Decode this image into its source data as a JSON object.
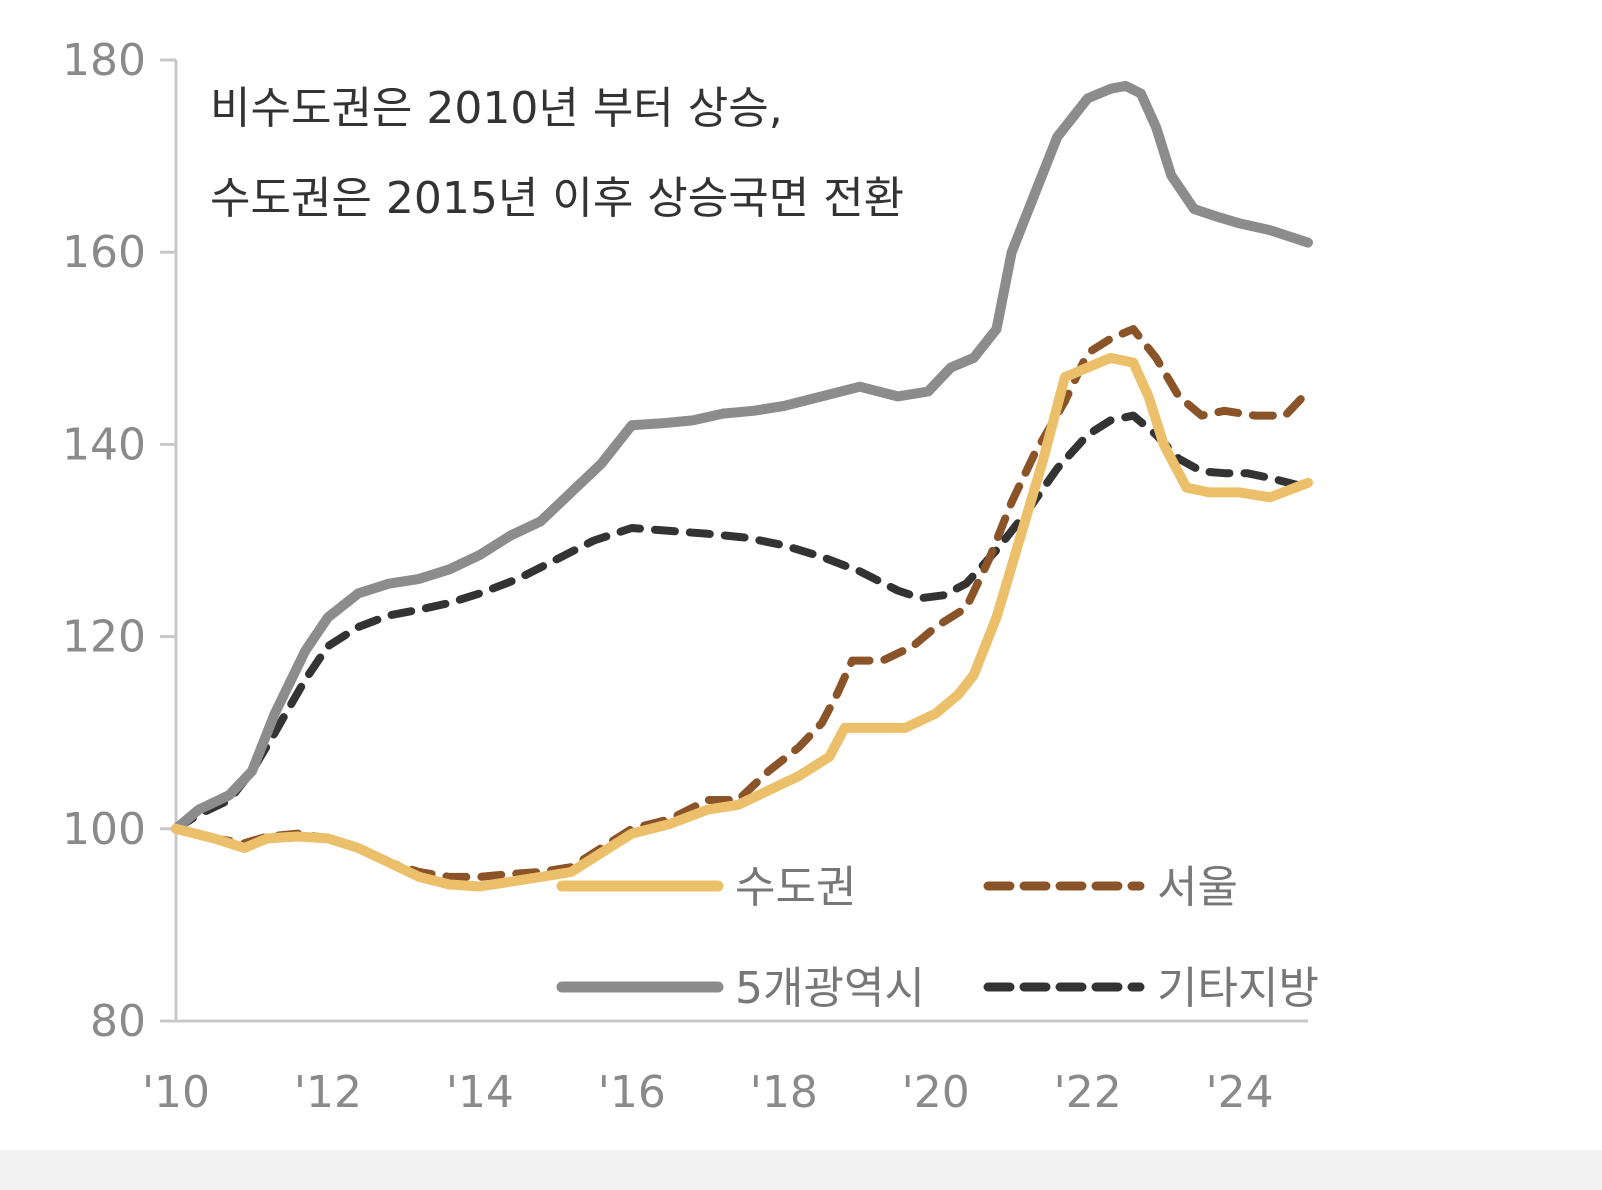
{
  "chart_data": {
    "type": "line",
    "annotation": [
      "비수도권은 2010년 부터 상승,",
      "수도권은 2015년 이후 상승국면 전환"
    ],
    "y_ticks": [
      "180",
      "160",
      "140",
      "120",
      "100",
      "80"
    ],
    "x_ticks": [
      "'10",
      "'12",
      "'14",
      "'16",
      "'18",
      "'20",
      "'22",
      "'24"
    ],
    "ylim": [
      80,
      180
    ],
    "xlim": [
      2010,
      2024.9
    ],
    "grid": false,
    "legend_position": "bottom-right",
    "series": [
      {
        "name": "수도권",
        "color": "#ecc06a",
        "dash": "solid",
        "points": [
          [
            2010.0,
            100
          ],
          [
            2010.5,
            99
          ],
          [
            2010.9,
            98
          ],
          [
            2011.2,
            99
          ],
          [
            2011.6,
            99.2
          ],
          [
            2012.0,
            99
          ],
          [
            2012.4,
            98
          ],
          [
            2012.8,
            96.5
          ],
          [
            2013.2,
            95
          ],
          [
            2013.6,
            94.2
          ],
          [
            2014.0,
            94
          ],
          [
            2014.4,
            94.5
          ],
          [
            2014.8,
            95
          ],
          [
            2015.2,
            95.5
          ],
          [
            2015.6,
            97.5
          ],
          [
            2016.0,
            99.5
          ],
          [
            2016.5,
            100.5
          ],
          [
            2017.0,
            102
          ],
          [
            2017.4,
            102.5
          ],
          [
            2017.8,
            104
          ],
          [
            2018.2,
            105.5
          ],
          [
            2018.6,
            107.5
          ],
          [
            2018.8,
            110.5
          ],
          [
            2019.2,
            110.5
          ],
          [
            2019.6,
            110.5
          ],
          [
            2020.0,
            112
          ],
          [
            2020.3,
            114
          ],
          [
            2020.5,
            116
          ],
          [
            2020.8,
            122
          ],
          [
            2021.1,
            130
          ],
          [
            2021.4,
            138
          ],
          [
            2021.7,
            147
          ],
          [
            2022.0,
            148
          ],
          [
            2022.3,
            149
          ],
          [
            2022.6,
            148.5
          ],
          [
            2022.8,
            145
          ],
          [
            2023.0,
            140
          ],
          [
            2023.3,
            135.5
          ],
          [
            2023.6,
            135
          ],
          [
            2024.0,
            135
          ],
          [
            2024.4,
            134.5
          ],
          [
            2024.9,
            136
          ]
        ]
      },
      {
        "name": "서울",
        "color": "#8a5428",
        "dash": "dashed",
        "points": [
          [
            2010.0,
            100
          ],
          [
            2010.5,
            99
          ],
          [
            2010.9,
            98.5
          ],
          [
            2011.2,
            99.2
          ],
          [
            2011.6,
            99.5
          ],
          [
            2012.0,
            99
          ],
          [
            2012.4,
            98
          ],
          [
            2012.8,
            96.5
          ],
          [
            2013.2,
            95.5
          ],
          [
            2013.6,
            95
          ],
          [
            2014.0,
            95
          ],
          [
            2014.4,
            95.3
          ],
          [
            2014.8,
            95.5
          ],
          [
            2015.2,
            96
          ],
          [
            2015.6,
            98
          ],
          [
            2016.0,
            100
          ],
          [
            2016.5,
            101
          ],
          [
            2017.0,
            103
          ],
          [
            2017.4,
            103
          ],
          [
            2017.8,
            106
          ],
          [
            2018.2,
            108.5
          ],
          [
            2018.5,
            111
          ],
          [
            2018.7,
            114
          ],
          [
            2018.9,
            117.5
          ],
          [
            2019.3,
            117.5
          ],
          [
            2019.7,
            119
          ],
          [
            2020.0,
            121
          ],
          [
            2020.4,
            123
          ],
          [
            2020.7,
            128
          ],
          [
            2021.0,
            134
          ],
          [
            2021.3,
            139
          ],
          [
            2021.7,
            144.5
          ],
          [
            2022.0,
            149.5
          ],
          [
            2022.3,
            151
          ],
          [
            2022.6,
            152
          ],
          [
            2022.9,
            149
          ],
          [
            2023.2,
            145
          ],
          [
            2023.5,
            143
          ],
          [
            2023.8,
            143.5
          ],
          [
            2024.2,
            143
          ],
          [
            2024.6,
            143
          ],
          [
            2024.9,
            145.5
          ]
        ]
      },
      {
        "name": "5개광역시",
        "color": "#8c8c8c",
        "dash": "solid",
        "points": [
          [
            2010.0,
            100
          ],
          [
            2010.3,
            102
          ],
          [
            2010.7,
            103.5
          ],
          [
            2011.0,
            106
          ],
          [
            2011.3,
            112
          ],
          [
            2011.7,
            118.5
          ],
          [
            2012.0,
            122
          ],
          [
            2012.4,
            124.5
          ],
          [
            2012.8,
            125.5
          ],
          [
            2013.2,
            126
          ],
          [
            2013.6,
            127
          ],
          [
            2014.0,
            128.5
          ],
          [
            2014.4,
            130.5
          ],
          [
            2014.8,
            132
          ],
          [
            2015.2,
            135
          ],
          [
            2015.6,
            138
          ],
          [
            2016.0,
            142
          ],
          [
            2016.4,
            142.2
          ],
          [
            2016.8,
            142.5
          ],
          [
            2017.2,
            143.2
          ],
          [
            2017.6,
            143.5
          ],
          [
            2018.0,
            144
          ],
          [
            2018.5,
            145
          ],
          [
            2019.0,
            146
          ],
          [
            2019.5,
            145
          ],
          [
            2019.9,
            145.5
          ],
          [
            2020.2,
            148
          ],
          [
            2020.5,
            149
          ],
          [
            2020.8,
            152
          ],
          [
            2021.0,
            160
          ],
          [
            2021.3,
            166
          ],
          [
            2021.6,
            172
          ],
          [
            2022.0,
            176
          ],
          [
            2022.3,
            177
          ],
          [
            2022.5,
            177.3
          ],
          [
            2022.7,
            176.5
          ],
          [
            2022.9,
            173
          ],
          [
            2023.1,
            168
          ],
          [
            2023.4,
            164.5
          ],
          [
            2023.7,
            163.7
          ],
          [
            2024.0,
            163
          ],
          [
            2024.4,
            162.3
          ],
          [
            2024.9,
            161
          ]
        ]
      },
      {
        "name": "기타지방",
        "color": "#333333",
        "dash": "dashed",
        "points": [
          [
            2010.0,
            100
          ],
          [
            2010.3,
            101.5
          ],
          [
            2010.7,
            103
          ],
          [
            2011.0,
            106
          ],
          [
            2011.3,
            110
          ],
          [
            2011.7,
            115.5
          ],
          [
            2012.0,
            119
          ],
          [
            2012.4,
            121
          ],
          [
            2012.8,
            122.2
          ],
          [
            2013.2,
            122.8
          ],
          [
            2013.6,
            123.5
          ],
          [
            2014.0,
            124.5
          ],
          [
            2014.5,
            126
          ],
          [
            2015.0,
            128
          ],
          [
            2015.5,
            130
          ],
          [
            2016.0,
            131.3
          ],
          [
            2016.5,
            131
          ],
          [
            2017.0,
            130.7
          ],
          [
            2017.5,
            130.3
          ],
          [
            2018.0,
            129.5
          ],
          [
            2018.5,
            128.3
          ],
          [
            2019.0,
            126.8
          ],
          [
            2019.5,
            124.8
          ],
          [
            2019.8,
            124
          ],
          [
            2020.1,
            124.3
          ],
          [
            2020.4,
            125.5
          ],
          [
            2020.8,
            129
          ],
          [
            2021.2,
            133
          ],
          [
            2021.6,
            137.5
          ],
          [
            2022.0,
            141
          ],
          [
            2022.3,
            142.5
          ],
          [
            2022.6,
            143
          ],
          [
            2022.9,
            141
          ],
          [
            2023.2,
            138.5
          ],
          [
            2023.5,
            137.2
          ],
          [
            2023.8,
            137
          ],
          [
            2024.1,
            137
          ],
          [
            2024.4,
            136.5
          ],
          [
            2024.9,
            135.5
          ]
        ]
      }
    ]
  }
}
